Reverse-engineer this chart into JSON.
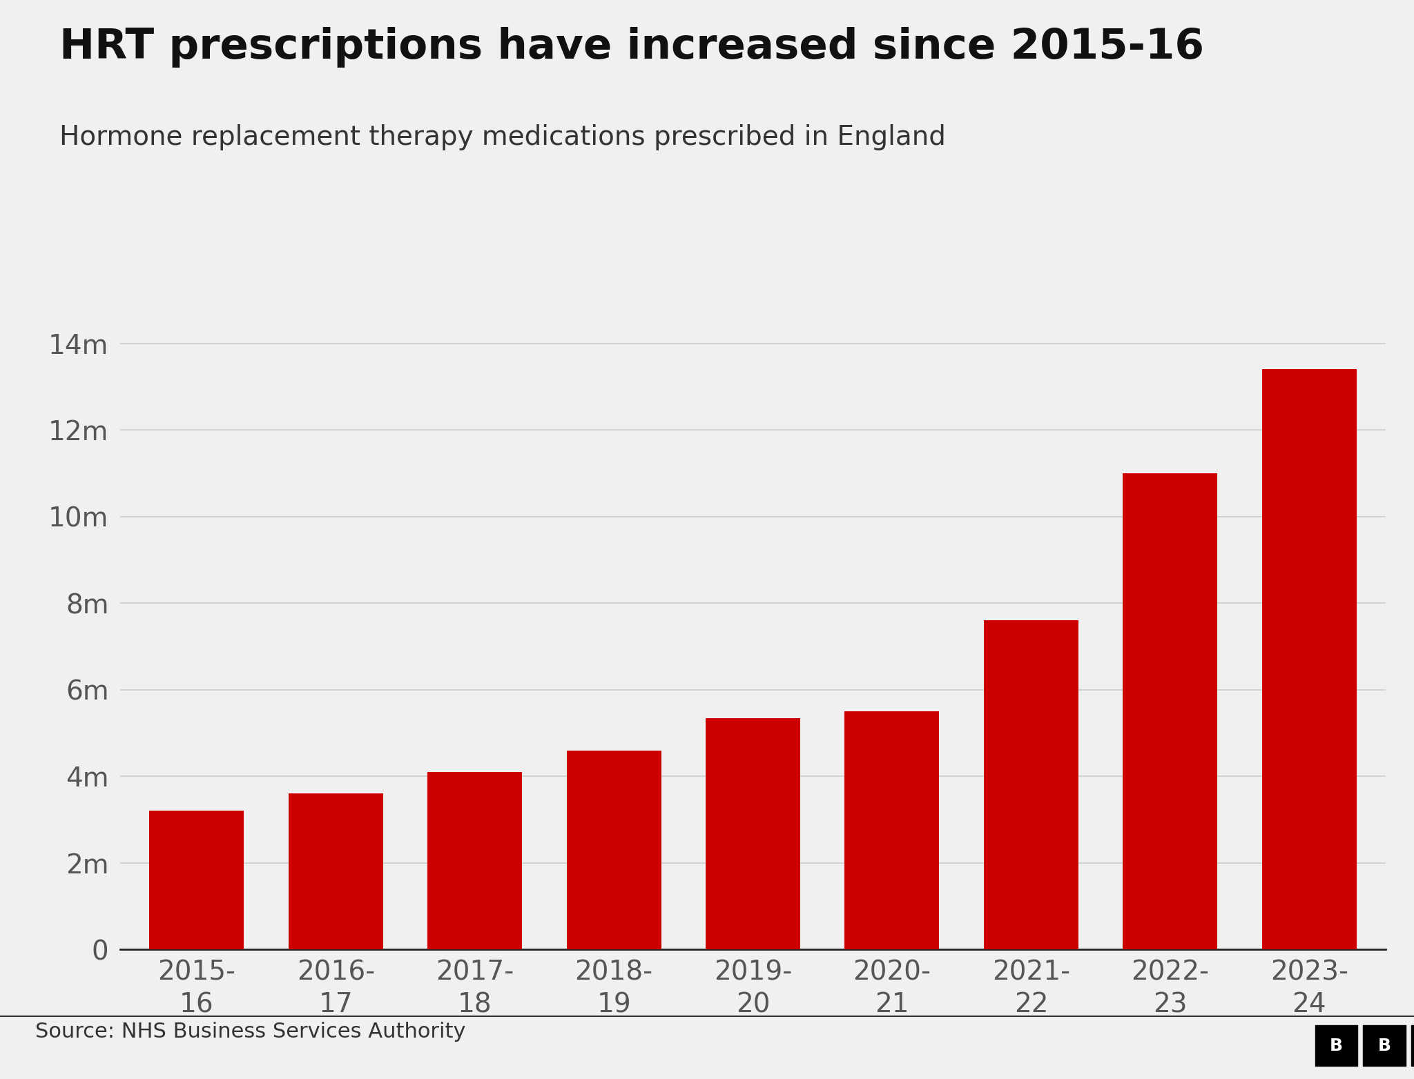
{
  "title": "HRT prescriptions have increased since 2015-16",
  "subtitle": "Hormone replacement therapy medications prescribed in England",
  "source": "Source: NHS Business Services Authority",
  "categories": [
    "2015-\n16",
    "2016-\n17",
    "2017-\n18",
    "2018-\n19",
    "2019-\n20",
    "2020-\n21",
    "2021-\n22",
    "2022-\n23",
    "2023-\n24"
  ],
  "values": [
    3200000,
    3600000,
    4100000,
    4600000,
    5350000,
    5500000,
    7600000,
    11000000,
    13400000
  ],
  "bar_color": "#cc0000",
  "background_color": "#f0f0f0",
  "title_fontsize": 44,
  "subtitle_fontsize": 28,
  "source_fontsize": 22,
  "tick_fontsize": 28,
  "ytick_labels": [
    "0",
    "2m",
    "4m",
    "6m",
    "8m",
    "10m",
    "12m",
    "14m"
  ],
  "ytick_values": [
    0,
    2000000,
    4000000,
    6000000,
    8000000,
    10000000,
    12000000,
    14000000
  ],
  "ylim": [
    0,
    15200000
  ],
  "grid_color": "#cccccc",
  "axis_color": "#555555",
  "title_color": "#111111",
  "subtitle_color": "#333333",
  "source_color": "#333333",
  "bar_width": 0.68
}
